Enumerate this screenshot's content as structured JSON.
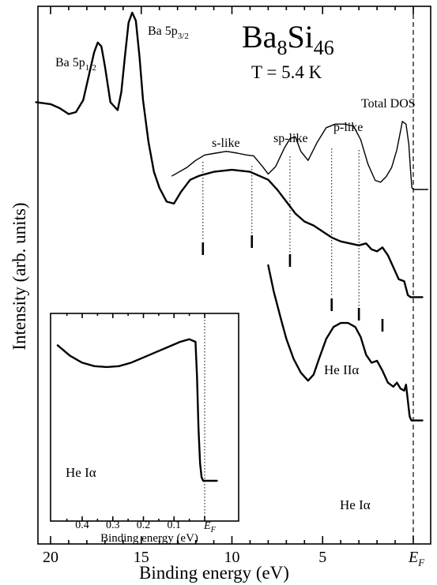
{
  "chart_data": {
    "type": "line",
    "title": "Ba8Si46",
    "temperature_label": "T = 5.4 K",
    "xlabel": "Binding energy (eV)",
    "ylabel": "Intensity (arb. units)",
    "x_reversed": true,
    "xlim": [
      20.8,
      -0.5
    ],
    "x_ticks": [
      20,
      15,
      10,
      5
    ],
    "x_tick_labels": [
      "20",
      "15",
      "10",
      "5",
      "E",
      "F"
    ],
    "fermi_label_main": "E",
    "fermi_label_sub": "F",
    "series": [
      {
        "name": "Total DOS",
        "x": [
          13.3,
          12.5,
          12.0,
          11.5,
          10.9,
          10.3,
          9.7,
          9.2,
          8.8,
          8.3,
          8.0,
          7.6,
          7.1,
          6.8,
          6.5,
          6.2,
          5.8,
          5.3,
          4.8,
          4.3,
          3.8,
          3.3,
          2.9,
          2.5,
          2.1,
          1.8,
          1.5,
          1.2,
          0.9,
          0.6,
          0.4,
          0.25,
          0.15,
          0.08,
          0.0,
          -0.8
        ],
        "y": [
          0.15,
          0.24,
          0.32,
          0.38,
          0.4,
          0.42,
          0.4,
          0.38,
          0.37,
          0.25,
          0.17,
          0.25,
          0.46,
          0.56,
          0.58,
          0.42,
          0.32,
          0.52,
          0.68,
          0.72,
          0.72,
          0.7,
          0.55,
          0.28,
          0.1,
          0.08,
          0.14,
          0.24,
          0.44,
          0.75,
          0.72,
          0.5,
          0.2,
          0.02,
          0.0,
          0.0
        ]
      },
      {
        "name": "He IIα",
        "x": [
          20.8,
          20.0,
          19.5,
          19.0,
          18.6,
          18.2,
          17.9,
          17.6,
          17.4,
          17.2,
          17.0,
          16.7,
          16.3,
          16.1,
          15.9,
          15.7,
          15.5,
          15.3,
          15.1,
          14.9,
          14.6,
          14.3,
          14.0,
          13.6,
          13.2,
          12.8,
          12.3,
          11.8,
          11.0,
          10.0,
          9.0,
          8.0,
          7.5,
          7.0,
          6.5,
          6.0,
          5.5,
          5.0,
          4.5,
          4.0,
          3.5,
          3.0,
          2.6,
          2.3,
          2.0,
          1.7,
          1.4,
          1.1,
          0.8,
          0.5,
          0.3,
          0.15,
          0.0,
          -0.5
        ],
        "y": [
          0.55,
          0.54,
          0.52,
          0.49,
          0.5,
          0.56,
          0.68,
          0.8,
          0.85,
          0.83,
          0.73,
          0.55,
          0.51,
          0.6,
          0.78,
          0.95,
          1.0,
          0.96,
          0.78,
          0.56,
          0.35,
          0.2,
          0.12,
          0.05,
          0.04,
          0.1,
          0.16,
          0.18,
          0.2,
          0.21,
          0.2,
          0.16,
          0.11,
          0.05,
          -0.01,
          -0.05,
          -0.07,
          -0.1,
          -0.13,
          -0.15,
          -0.16,
          -0.17,
          -0.16,
          -0.19,
          -0.2,
          -0.18,
          -0.22,
          -0.28,
          -0.34,
          -0.35,
          -0.42,
          -0.43,
          -0.43,
          -0.43
        ]
      },
      {
        "name": "He Iα",
        "x": [
          8.0,
          7.7,
          7.3,
          7.0,
          6.6,
          6.2,
          5.8,
          5.5,
          5.2,
          4.8,
          4.4,
          4.0,
          3.6,
          3.2,
          2.9,
          2.6,
          2.3,
          2.0,
          1.7,
          1.4,
          1.1,
          0.9,
          0.7,
          0.5,
          0.4,
          0.3,
          0.2,
          0.1,
          0.0,
          -0.5
        ],
        "y": [
          -0.27,
          -0.4,
          -0.54,
          -0.64,
          -0.74,
          -0.81,
          -0.85,
          -0.82,
          -0.74,
          -0.64,
          -0.58,
          -0.56,
          -0.56,
          -0.58,
          -0.63,
          -0.72,
          -0.76,
          -0.75,
          -0.8,
          -0.86,
          -0.88,
          -0.86,
          -0.89,
          -0.9,
          -0.87,
          -0.95,
          -1.03,
          -1.05,
          -1.05,
          -1.05
        ]
      }
    ],
    "spectrum_labels": [
      "Ba 5p1/2",
      "Ba 5p3/2",
      "He IIα",
      "He Iα",
      "Total DOS"
    ],
    "annotations": {
      "ba_1_2_main": "Ba 5p",
      "ba_1_2_sub": "1/2",
      "ba_3_2_main": "Ba 5p",
      "ba_3_2_sub": "3/2",
      "title_ba": "Ba",
      "title_ba_sub": "8",
      "title_si": "Si",
      "title_si_sub": "46",
      "s_like": "s-like",
      "sp_like": "sp-like",
      "p_like": "p-like",
      "total_dos": "Total DOS",
      "he_ii": "He IIα",
      "he_i": "He Iα"
    },
    "feature_ticks_eV": [
      11.6,
      8.9,
      6.8,
      4.5,
      3.0,
      1.7
    ],
    "dotted_guides_eV": [
      11.6,
      8.9,
      6.8,
      4.5,
      3.0
    ],
    "inset": {
      "type": "line",
      "series_name": "He Iα",
      "label": "He Iα",
      "xlabel": "Binding energy (eV)",
      "xlim": [
        0.48,
        -0.06
      ],
      "x_ticks": [
        0.4,
        0.3,
        0.2,
        0.1
      ],
      "x_tick_labels": [
        "0.4",
        "0.3",
        "0.2",
        "0.1"
      ],
      "fermi_label_main": "E",
      "fermi_label_sub": "F",
      "x": [
        0.48,
        0.44,
        0.4,
        0.36,
        0.32,
        0.28,
        0.24,
        0.2,
        0.16,
        0.12,
        0.08,
        0.05,
        0.03,
        0.025,
        0.02,
        0.015,
        0.01,
        0.005,
        0.0,
        -0.01,
        -0.04
      ],
      "y": [
        0.78,
        0.72,
        0.68,
        0.66,
        0.655,
        0.66,
        0.68,
        0.71,
        0.74,
        0.77,
        0.8,
        0.815,
        0.8,
        0.6,
        0.3,
        0.1,
        0.02,
        0.0,
        0.0,
        0.0,
        0.0
      ]
    }
  }
}
